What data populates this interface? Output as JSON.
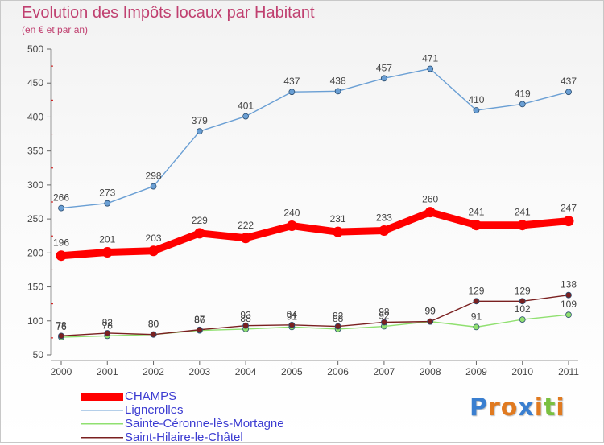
{
  "header": {
    "title": "Evolution des Impôts locaux par Habitant",
    "subtitle": "(en € et par an)"
  },
  "chart_data": {
    "type": "line",
    "title": "Evolution des Impôts locaux par Habitant",
    "subtitle": "(en € et par an)",
    "x": [
      "2000",
      "2001",
      "2002",
      "2003",
      "2004",
      "2005",
      "2006",
      "2007",
      "2008",
      "2009",
      "2010",
      "2011"
    ],
    "ylim": [
      50,
      500
    ],
    "yticks": [
      50,
      100,
      150,
      200,
      250,
      300,
      350,
      400,
      450,
      500
    ],
    "grid": false,
    "legend_position": "bottom-left",
    "series": [
      {
        "name": "CHAMPS",
        "color": "#ff0000",
        "values": [
          196,
          201,
          203,
          229,
          222,
          240,
          231,
          233,
          260,
          241,
          241,
          247
        ]
      },
      {
        "name": "Lignerolles",
        "color": "#6a9fd4",
        "values": [
          266,
          273,
          298,
          379,
          401,
          437,
          438,
          457,
          471,
          410,
          419,
          437
        ]
      },
      {
        "name": "Sainte-Céronne-lès-Mortagne",
        "color": "#90e070",
        "values": [
          76,
          78,
          80,
          86,
          88,
          91,
          88,
          92,
          99,
          91,
          102,
          109
        ]
      },
      {
        "name": "Saint-Hilaire-le-Châtel",
        "color": "#7a2020",
        "values": [
          78,
          82,
          80,
          87,
          93,
          94,
          92,
          98,
          99,
          129,
          129,
          138
        ]
      }
    ]
  },
  "logo": {
    "letters": [
      {
        "ch": "P",
        "color": "#3a7fd0"
      },
      {
        "ch": "r",
        "color": "#e07a20"
      },
      {
        "ch": "o",
        "color": "#e07a20"
      },
      {
        "ch": "x",
        "color": "#3a7fd0"
      },
      {
        "ch": "i",
        "color": "#e07a20"
      },
      {
        "ch": "t",
        "color": "#7ac040"
      },
      {
        "ch": "i",
        "color": "#e07a20"
      }
    ]
  }
}
